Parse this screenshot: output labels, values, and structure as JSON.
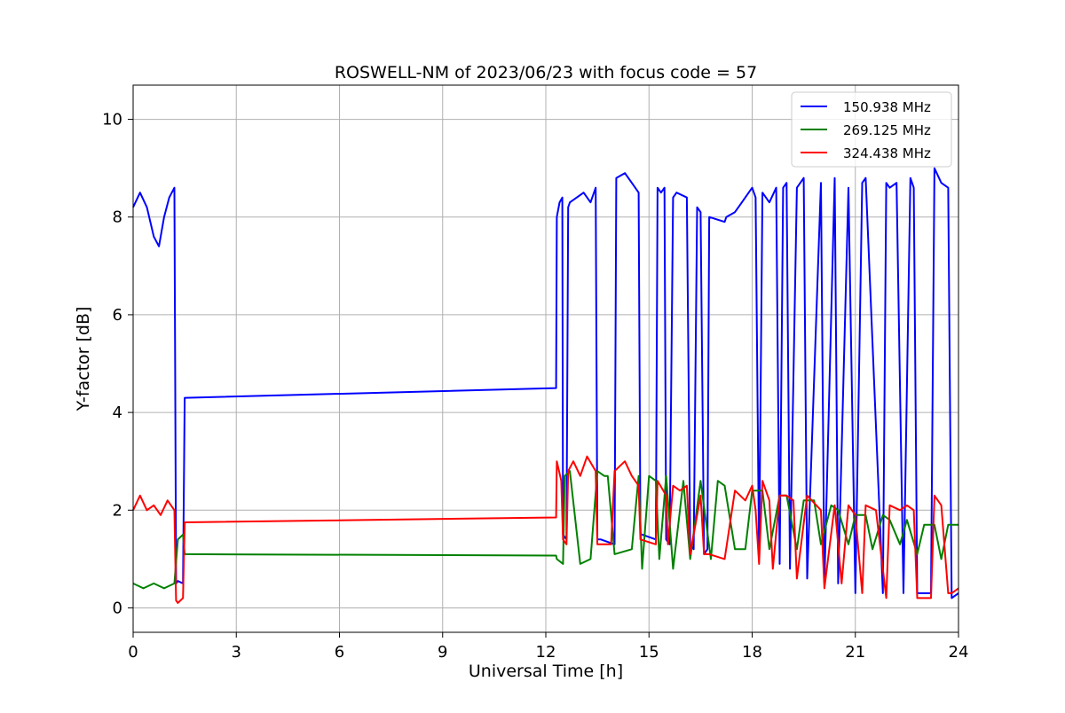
{
  "chart_data": {
    "type": "line",
    "title": "ROSWELL-NM of 2023/06/23 with focus code = 57",
    "xlabel": "Universal Time [h]",
    "ylabel": "Y-factor [dB]",
    "xlim": [
      0,
      24
    ],
    "ylim": [
      -0.5,
      10.7
    ],
    "xticks": [
      0,
      3,
      6,
      9,
      12,
      15,
      18,
      21,
      24
    ],
    "xtick_labels": [
      "0",
      "3",
      "6",
      "9",
      "12",
      "15",
      "18",
      "21",
      "24"
    ],
    "yticks": [
      0,
      2,
      4,
      6,
      8,
      10
    ],
    "ytick_labels": [
      "0",
      "2",
      "4",
      "6",
      "8",
      "10"
    ],
    "grid": true,
    "legend_position": "top-right",
    "series": [
      {
        "name": "150.938 MHz",
        "color": "#0000ff",
        "x": [
          0.0,
          0.2,
          0.4,
          0.6,
          0.75,
          0.9,
          1.05,
          1.2,
          1.25,
          1.3,
          1.45,
          1.5,
          1.52,
          12.3,
          12.32,
          12.4,
          12.48,
          12.5,
          12.6,
          12.65,
          12.7,
          12.9,
          13.1,
          13.3,
          13.45,
          13.5,
          13.6,
          14.0,
          14.05,
          14.3,
          14.5,
          14.7,
          14.75,
          14.8,
          15.2,
          15.25,
          15.35,
          15.45,
          15.5,
          15.6,
          15.7,
          15.8,
          16.1,
          16.2,
          16.3,
          16.4,
          16.5,
          16.6,
          16.7,
          16.75,
          17.2,
          17.25,
          17.5,
          17.7,
          17.9,
          18.0,
          18.1,
          18.2,
          18.3,
          18.5,
          18.7,
          18.8,
          18.9,
          19.0,
          19.1,
          19.3,
          19.5,
          19.6,
          20.0,
          20.1,
          20.4,
          20.5,
          20.8,
          21.0,
          21.2,
          21.3,
          21.8,
          21.9,
          22.0,
          22.2,
          22.4,
          22.6,
          22.7,
          22.8,
          23.2,
          23.3,
          23.5,
          23.7,
          23.8,
          24.0
        ],
        "y": [
          8.2,
          8.5,
          8.2,
          7.6,
          7.4,
          8.0,
          8.4,
          8.6,
          0.5,
          0.55,
          0.5,
          4.3,
          4.3,
          4.5,
          8.0,
          8.3,
          8.4,
          1.5,
          1.4,
          8.2,
          8.3,
          8.4,
          8.5,
          8.3,
          8.6,
          1.4,
          1.4,
          1.3,
          8.8,
          8.9,
          8.7,
          8.5,
          1.5,
          1.5,
          1.4,
          8.6,
          8.5,
          8.6,
          1.4,
          1.3,
          8.4,
          8.5,
          8.4,
          1.3,
          1.2,
          8.2,
          8.1,
          1.1,
          1.2,
          8.0,
          7.9,
          8.0,
          8.1,
          8.3,
          8.5,
          8.6,
          8.4,
          1.0,
          8.5,
          8.3,
          8.6,
          0.9,
          8.6,
          8.7,
          0.8,
          8.6,
          8.8,
          0.6,
          8.7,
          0.5,
          8.8,
          0.5,
          8.6,
          0.3,
          8.7,
          8.8,
          0.3,
          8.7,
          8.6,
          8.7,
          0.3,
          8.8,
          8.6,
          0.3,
          0.3,
          9.0,
          8.7,
          8.6,
          0.2,
          0.3
        ]
      },
      {
        "name": "269.125 MHz",
        "color": "#008000",
        "x": [
          0.0,
          0.3,
          0.6,
          0.9,
          1.2,
          1.3,
          1.45,
          1.5,
          1.52,
          12.3,
          12.32,
          12.5,
          12.55,
          12.7,
          13.0,
          13.3,
          13.5,
          13.7,
          13.8,
          14.0,
          14.5,
          14.7,
          14.8,
          15.0,
          15.2,
          15.3,
          15.5,
          15.7,
          16.0,
          16.2,
          16.5,
          16.8,
          17.0,
          17.2,
          17.5,
          17.8,
          18.0,
          18.3,
          18.5,
          18.8,
          19.0,
          19.3,
          19.5,
          19.8,
          20.0,
          20.3,
          20.5,
          20.8,
          21.0,
          21.3,
          21.5,
          21.8,
          22.0,
          22.3,
          22.5,
          22.8,
          23.0,
          23.3,
          23.5,
          23.7,
          23.8,
          24.0
        ],
        "y": [
          0.5,
          0.4,
          0.5,
          0.4,
          0.5,
          1.4,
          1.5,
          1.1,
          1.1,
          1.07,
          1.0,
          0.9,
          2.7,
          2.8,
          0.9,
          1.0,
          2.8,
          2.7,
          2.7,
          1.1,
          1.2,
          2.7,
          0.8,
          2.7,
          2.6,
          1.0,
          2.7,
          0.8,
          2.6,
          1.0,
          2.6,
          1.0,
          2.6,
          2.5,
          1.2,
          1.2,
          2.4,
          2.4,
          1.2,
          2.3,
          2.3,
          1.2,
          2.2,
          2.2,
          1.3,
          2.1,
          2.0,
          1.3,
          1.9,
          1.9,
          1.2,
          1.9,
          1.8,
          1.3,
          1.8,
          1.1,
          1.7,
          1.7,
          1.0,
          1.7,
          1.7,
          1.7
        ]
      },
      {
        "name": "324.438 MHz",
        "color": "#ff0000",
        "x": [
          0.0,
          0.2,
          0.4,
          0.6,
          0.8,
          1.0,
          1.2,
          1.25,
          1.3,
          1.45,
          1.5,
          1.52,
          12.3,
          12.32,
          12.45,
          12.5,
          12.6,
          12.65,
          12.8,
          13.0,
          13.2,
          13.45,
          13.5,
          13.9,
          14.0,
          14.3,
          14.5,
          14.7,
          14.75,
          15.2,
          15.25,
          15.5,
          15.55,
          15.7,
          15.9,
          16.1,
          16.2,
          16.5,
          16.6,
          16.75,
          17.2,
          17.5,
          17.8,
          18.0,
          18.1,
          18.2,
          18.3,
          18.5,
          18.6,
          18.8,
          19.0,
          19.2,
          19.3,
          19.6,
          20.0,
          20.1,
          20.4,
          20.6,
          20.8,
          21.0,
          21.2,
          21.3,
          21.6,
          21.9,
          22.0,
          22.3,
          22.5,
          22.7,
          22.8,
          23.2,
          23.3,
          23.5,
          23.7,
          23.8,
          24.0
        ],
        "y": [
          2.0,
          2.3,
          2.0,
          2.1,
          1.9,
          2.2,
          2.0,
          0.15,
          0.1,
          0.2,
          1.75,
          1.75,
          1.85,
          3.0,
          2.6,
          1.4,
          1.3,
          2.8,
          3.0,
          2.7,
          3.1,
          2.8,
          1.3,
          1.3,
          2.8,
          3.0,
          2.7,
          2.5,
          1.4,
          1.3,
          2.6,
          2.3,
          1.3,
          2.5,
          2.4,
          2.5,
          1.1,
          2.3,
          1.1,
          1.1,
          1.0,
          2.4,
          2.2,
          2.5,
          2.0,
          0.9,
          2.6,
          2.2,
          0.8,
          2.3,
          2.3,
          2.2,
          0.6,
          2.3,
          2.0,
          0.4,
          2.1,
          0.5,
          2.1,
          1.9,
          0.3,
          2.1,
          2.0,
          0.2,
          2.1,
          2.0,
          2.1,
          2.0,
          0.2,
          0.2,
          2.3,
          2.1,
          0.3,
          0.3,
          0.4
        ]
      }
    ]
  }
}
